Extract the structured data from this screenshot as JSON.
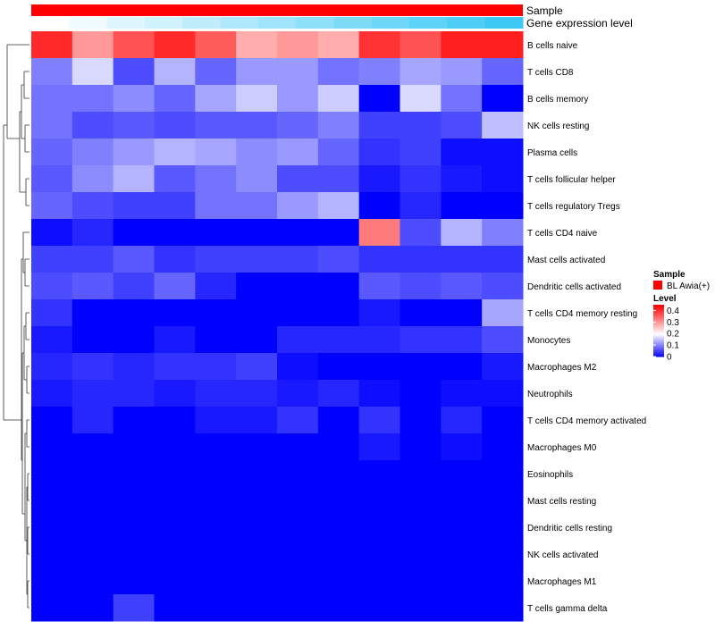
{
  "chart_data": {
    "type": "heatmap",
    "annotation_rows": [
      {
        "name": "Sample",
        "value_label": "BL Awia(+)",
        "color": "#ff0000"
      },
      {
        "name": "Gene expression level",
        "values": [
          0.0,
          0.05,
          0.1,
          0.15,
          0.2,
          0.25,
          0.3,
          0.35,
          0.4,
          0.45,
          0.5,
          0.55,
          0.6
        ]
      }
    ],
    "rows": [
      "B cells naive",
      "T cells CD8",
      "B cells memory",
      "NK cells resting",
      "Plasma cells",
      "T cells follicular helper",
      "T cells regulatory  Tregs",
      "T cells CD4 naive",
      "Mast cells activated",
      "Dendritic cells activated",
      "T cells CD4 memory resting",
      "Monocytes",
      "Macrophages M2",
      "Neutrophils",
      "T cells CD4 memory activated",
      "Macrophages M0",
      "Eosinophils",
      "Mast cells resting",
      "Dendritic cells resting",
      "NK cells activated",
      "Macrophages M1",
      "T cells gamma delta"
    ],
    "n_columns": 12,
    "values": [
      [
        0.41,
        0.3,
        0.37,
        0.41,
        0.36,
        0.28,
        0.3,
        0.28,
        0.4,
        0.37,
        0.42,
        0.42
      ],
      [
        0.1,
        0.17,
        0.06,
        0.14,
        0.08,
        0.12,
        0.12,
        0.09,
        0.1,
        0.13,
        0.12,
        0.08
      ],
      [
        0.09,
        0.09,
        0.11,
        0.08,
        0.13,
        0.16,
        0.12,
        0.16,
        0.0,
        0.17,
        0.09,
        0.0
      ],
      [
        0.09,
        0.06,
        0.07,
        0.06,
        0.07,
        0.07,
        0.08,
        0.1,
        0.05,
        0.05,
        0.06,
        0.15
      ],
      [
        0.08,
        0.1,
        0.12,
        0.14,
        0.13,
        0.11,
        0.12,
        0.08,
        0.04,
        0.05,
        0.01,
        0.01
      ],
      [
        0.07,
        0.11,
        0.14,
        0.07,
        0.09,
        0.11,
        0.06,
        0.06,
        0.02,
        0.04,
        0.02,
        0.01
      ],
      [
        0.08,
        0.06,
        0.05,
        0.05,
        0.09,
        0.09,
        0.12,
        0.14,
        0.0,
        0.03,
        0.0,
        0.0
      ],
      [
        0.01,
        0.03,
        0.0,
        0.0,
        0.0,
        0.0,
        0.0,
        0.0,
        0.33,
        0.06,
        0.14,
        0.1
      ],
      [
        0.05,
        0.05,
        0.07,
        0.04,
        0.05,
        0.05,
        0.05,
        0.06,
        0.04,
        0.04,
        0.04,
        0.04
      ],
      [
        0.06,
        0.07,
        0.05,
        0.08,
        0.03,
        0.0,
        0.0,
        0.0,
        0.07,
        0.06,
        0.07,
        0.06
      ],
      [
        0.04,
        0.0,
        0.0,
        0.0,
        0.0,
        0.0,
        0.0,
        0.0,
        0.02,
        0.0,
        0.0,
        0.13
      ],
      [
        0.02,
        0.0,
        0.0,
        0.02,
        0.0,
        0.0,
        0.03,
        0.03,
        0.03,
        0.04,
        0.04,
        0.06
      ],
      [
        0.03,
        0.04,
        0.03,
        0.04,
        0.04,
        0.05,
        0.01,
        0.0,
        0.0,
        0.0,
        0.0,
        0.02
      ],
      [
        0.02,
        0.03,
        0.03,
        0.02,
        0.03,
        0.03,
        0.02,
        0.03,
        0.01,
        0.0,
        0.01,
        0.01
      ],
      [
        0.0,
        0.03,
        0.0,
        0.0,
        0.02,
        0.02,
        0.04,
        0.0,
        0.04,
        0.0,
        0.03,
        0.0
      ],
      [
        0.0,
        0.0,
        0.0,
        0.0,
        0.0,
        0.0,
        0.0,
        0.0,
        0.02,
        0.0,
        0.01,
        0.0
      ],
      [
        0.0,
        0.0,
        0.0,
        0.0,
        0.0,
        0.0,
        0.0,
        0.0,
        0.0,
        0.0,
        0.0,
        0.0
      ],
      [
        0.0,
        0.0,
        0.0,
        0.0,
        0.0,
        0.0,
        0.0,
        0.0,
        0.0,
        0.0,
        0.0,
        0.0
      ],
      [
        0.0,
        0.0,
        0.0,
        0.0,
        0.0,
        0.0,
        0.0,
        0.0,
        0.0,
        0.0,
        0.0,
        0.0
      ],
      [
        0.0,
        0.0,
        0.0,
        0.0,
        0.0,
        0.0,
        0.0,
        0.0,
        0.0,
        0.0,
        0.0,
        0.0
      ],
      [
        0.0,
        0.0,
        0.0,
        0.0,
        0.0,
        0.0,
        0.0,
        0.0,
        0.0,
        0.0,
        0.0,
        0.0
      ],
      [
        0.0,
        0.0,
        0.05,
        0.0,
        0.0,
        0.0,
        0.0,
        0.0,
        0.0,
        0.0,
        0.0,
        0.0
      ]
    ],
    "color_scale": {
      "low": "#0000ff",
      "mid": "#ffffff",
      "high": "#ff0000",
      "mid_value": 0.2,
      "max_value": 0.45
    },
    "legend": {
      "sample_title": "Sample",
      "sample_entry": "BL Awia(+)",
      "level_title": "Level",
      "level_ticks": [
        "0",
        "0.1",
        "0.2",
        "0.3",
        "0.4"
      ],
      "level_tick_values": [
        0,
        0.1,
        0.2,
        0.3,
        0.4
      ],
      "placement": "right"
    },
    "row_dendrogram": true
  }
}
